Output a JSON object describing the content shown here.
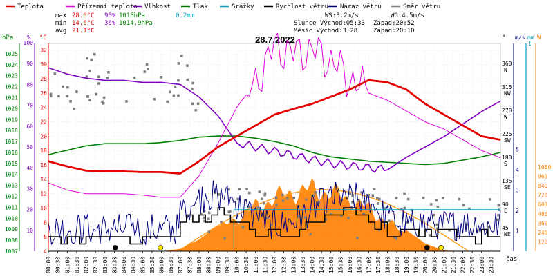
{
  "chart_data": {
    "type": "line",
    "title": "28.7.2022",
    "legend": [
      {
        "key": "temp",
        "label": "Teplota",
        "color": "#e60000"
      },
      {
        "key": "feels",
        "label": "Přízemní teplota",
        "color": "#e000e0"
      },
      {
        "key": "hum",
        "label": "Vlhkost",
        "color": "#8000c0"
      },
      {
        "key": "press",
        "label": "Tlak",
        "color": "#008000"
      },
      {
        "key": "rain",
        "label": "Srážky",
        "color": "#00a0c0"
      },
      {
        "key": "wind",
        "label": "Rychlost větru",
        "color": "#000000"
      },
      {
        "key": "gust",
        "label": "Náraz větru",
        "color": "#000080"
      },
      {
        "key": "dir",
        "label": "Směr větru",
        "color": "#808080"
      }
    ],
    "stats": {
      "max": {
        "label": "max",
        "temp": "28.0°C",
        "hum": "90%",
        "press": "1018hPa",
        "rain": "0.2mm"
      },
      "min": {
        "label": "min",
        "temp": "14.6°C",
        "hum": "36%",
        "press": "1014.9hPa"
      },
      "avg": {
        "label": "avg",
        "temp": "21.1°C"
      }
    },
    "info": {
      "ws": "WS:3.2m/s",
      "wg": "WG:4.5m/s",
      "sun": "Slunce Východ:05:33",
      "sunset": "Západ:20:52",
      "moon": "Měsíc  Východ:3:28",
      "moonset": "Západ:20:10"
    },
    "axes": {
      "hpa": {
        "unit": "hPa",
        "ticks": [
          "1025",
          "1024",
          "1023",
          "1022",
          "1021",
          "1020",
          "1019",
          "1018",
          "1017",
          "1016",
          "1015",
          "1014",
          "1013",
          "1012",
          "1011",
          "1010",
          "1009",
          "1008",
          "1007"
        ]
      },
      "pct": {
        "unit": "%",
        "ticks": [
          "100",
          "90",
          "80",
          "70",
          "60",
          "50",
          "40",
          "30",
          "20",
          "10"
        ]
      },
      "degc": {
        "unit": "°C",
        "ticks": [
          "32",
          "30",
          "28",
          "26",
          "24",
          "22",
          "20",
          "18",
          "16",
          "14",
          "12",
          "10",
          "8",
          "6",
          "4"
        ]
      },
      "dir": {
        "unit": "°",
        "ticks": [
          {
            "deg": "360",
            "lbl": "N"
          },
          {
            "deg": "315",
            "lbl": "NW"
          },
          {
            "deg": "270",
            "lbl": "W"
          },
          {
            "deg": "225",
            "lbl": "SW"
          },
          {
            "deg": "180",
            "lbl": "S"
          },
          {
            "deg": "135",
            "lbl": "SE"
          },
          {
            "deg": "90",
            "lbl": "E"
          },
          {
            "deg": "45",
            "lbl": "NE"
          }
        ]
      },
      "ms": {
        "unit": "m/s",
        "ticks": [
          "5",
          "4",
          "3",
          "2",
          "1"
        ]
      },
      "mm": {
        "unit": "mm",
        "ticks": [
          "1"
        ]
      },
      "w": {
        "unit": "W",
        "ticks": [
          "1080",
          "960",
          "840",
          "720",
          "600",
          "480",
          "360",
          "240",
          "120"
        ]
      },
      "time_label": "čas",
      "x_ticks": [
        "00:00",
        "00:30",
        "01:00",
        "01:30",
        "02:00",
        "02:30",
        "03:00",
        "03:30",
        "04:00",
        "04:30",
        "05:00",
        "05:30",
        "06:00",
        "06:30",
        "07:00",
        "07:30",
        "08:00",
        "08:30",
        "09:00",
        "09:30",
        "10:00",
        "10:30",
        "11:00",
        "11:30",
        "12:00",
        "12:30",
        "13:00",
        "13:30",
        "14:00",
        "14:30",
        "15:00",
        "15:30",
        "16:00",
        "16:30",
        "17:00",
        "17:30",
        "18:00",
        "18:30",
        "19:00",
        "19:30",
        "20:00",
        "20:30",
        "21:00",
        "21:30",
        "22:00",
        "22:30",
        "23:00",
        "23:30"
      ]
    },
    "hours": [
      0,
      1,
      2,
      3,
      4,
      5,
      6,
      7,
      8,
      9,
      10,
      11,
      12,
      13,
      14,
      15,
      16,
      17,
      18,
      19,
      20,
      21,
      22,
      23,
      24
    ],
    "series": {
      "temp": [
        16.5,
        15.8,
        15.2,
        15.1,
        15.1,
        15.0,
        15.0,
        14.8,
        16.5,
        18.5,
        20.0,
        21.5,
        23.0,
        23.8,
        24.5,
        25.5,
        26.5,
        27.8,
        27.5,
        26.5,
        24.5,
        23.0,
        21.5,
        20.0,
        19.5
      ],
      "feels": [
        13.5,
        12.5,
        12.0,
        12.0,
        12.0,
        11.8,
        11.5,
        11.5,
        14.5,
        19.0,
        24.0,
        27.5,
        32.5,
        31.5,
        32.0,
        30.5,
        28.0,
        26.0,
        25.0,
        23.5,
        22.0,
        21.0,
        19.5,
        18.0,
        17.0
      ],
      "hum": [
        88,
        85,
        83,
        82,
        82,
        81,
        81,
        80,
        74,
        65,
        52,
        50,
        48,
        46,
        44,
        42,
        41,
        40,
        39,
        45,
        50,
        55,
        61,
        67,
        72
      ],
      "press": [
        1015.8,
        1016.2,
        1016.6,
        1016.8,
        1016.8,
        1016.8,
        1016.9,
        1017.1,
        1017.4,
        1017.5,
        1017.5,
        1017.3,
        1017.0,
        1016.6,
        1016.0,
        1015.6,
        1015.4,
        1015.2,
        1015.1,
        1015.0,
        1014.9,
        1015.0,
        1015.3,
        1015.6,
        1016.0
      ]
    },
    "rain_mm": 0.2,
    "solar_w": [
      0,
      0,
      0,
      0,
      0,
      0,
      0,
      30,
      150,
      330,
      520,
      690,
      830,
      920,
      970,
      920,
      810,
      660,
      450,
      270,
      100,
      10,
      0,
      0,
      0
    ],
    "moon_markers": [
      {
        "hour": 3.55,
        "color": "#000000"
      },
      {
        "hour": 5.95,
        "color": "#ffe600"
      },
      {
        "hour": 20.1,
        "color": "#000000"
      },
      {
        "hour": 20.85,
        "color": "#ffe600"
      }
    ]
  }
}
